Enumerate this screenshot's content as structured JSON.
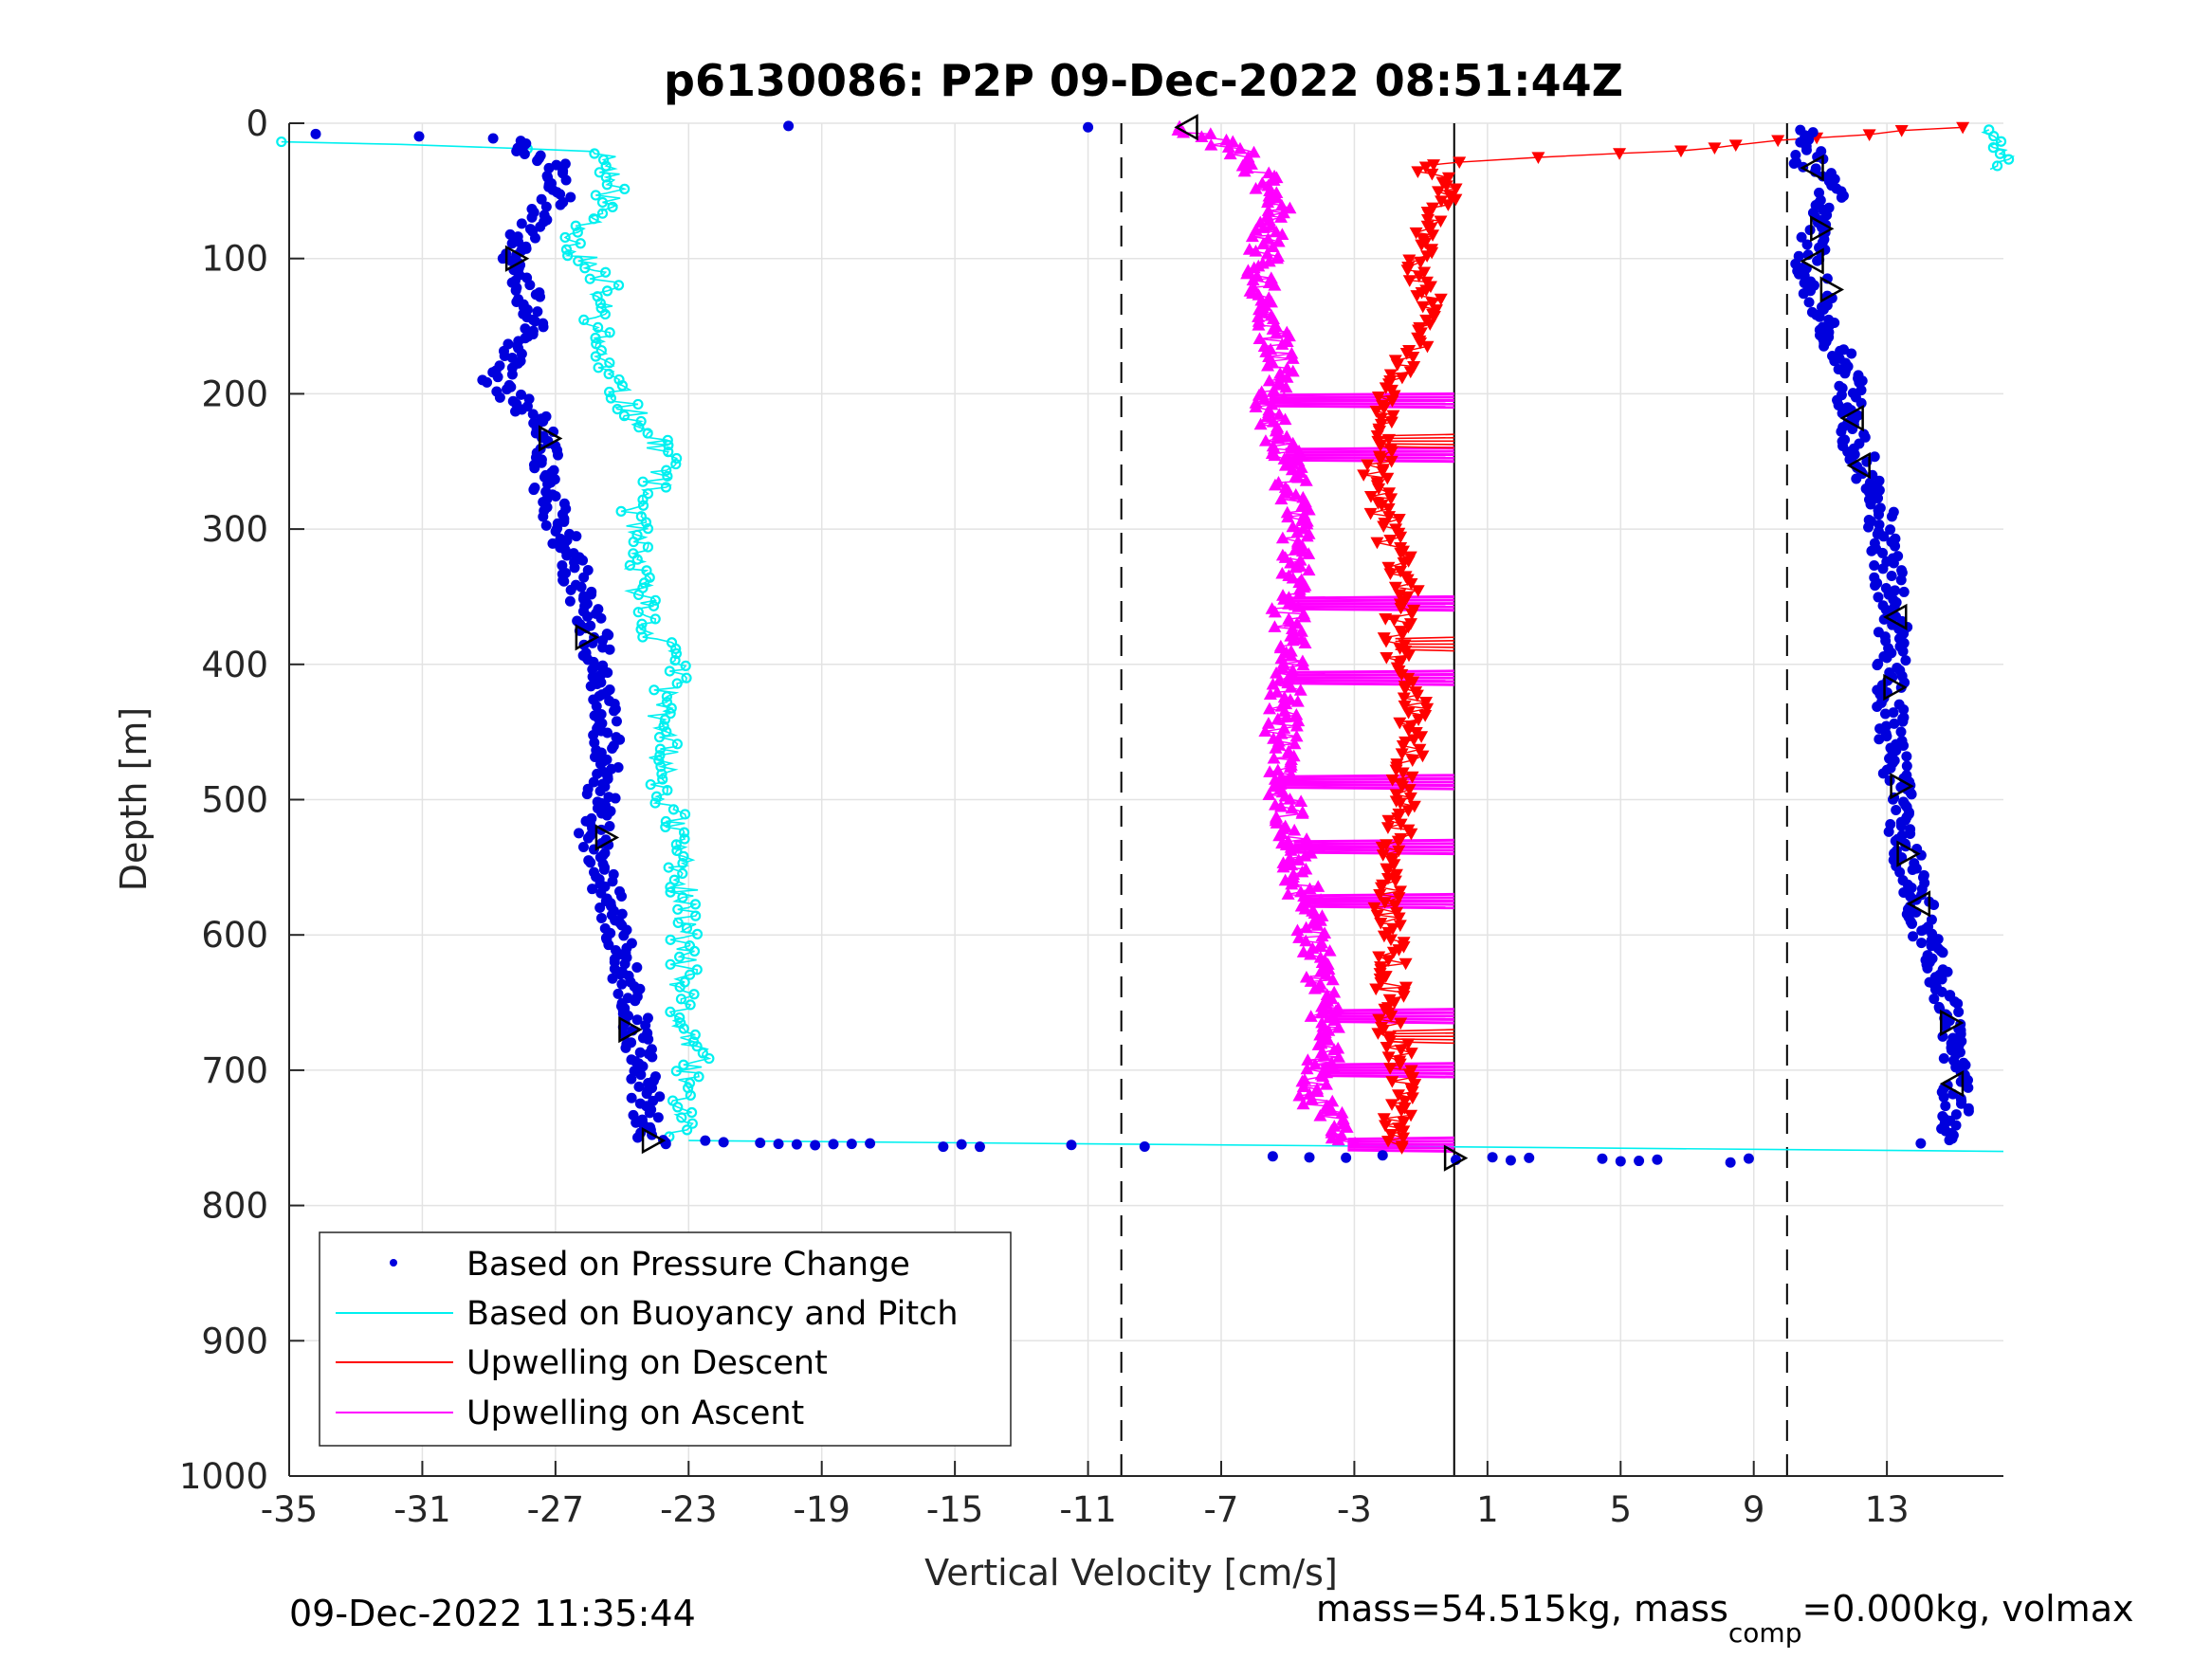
{
  "chart_data": {
    "type": "scatter",
    "title": "p6130086: P2P 09-Dec-2022 08:51:44Z",
    "xlabel": "Vertical Velocity [cm/s]",
    "ylabel": "Depth [m]",
    "xlim": [
      -35,
      16.5
    ],
    "ylim": [
      0,
      1000
    ],
    "y_reversed": true,
    "x_ticks": [
      -35,
      -31,
      -27,
      -23,
      -19,
      -15,
      -11,
      -7,
      -3,
      1,
      5,
      9,
      13
    ],
    "x_tick_labels": [
      "-35",
      "-31",
      "-27",
      "-23",
      "-19",
      "-15",
      "-11",
      "-7",
      "-3",
      "1",
      "5",
      "9",
      "13"
    ],
    "y_ticks": [
      0,
      100,
      200,
      300,
      400,
      500,
      600,
      700,
      800,
      900,
      1000
    ],
    "y_tick_labels": [
      "0",
      "100",
      "200",
      "300",
      "400",
      "500",
      "600",
      "700",
      "800",
      "900",
      "1000"
    ],
    "grid": true,
    "legend_position": "lower-left",
    "reference_lines": [
      {
        "x": -10,
        "style": "dashed"
      },
      {
        "x": 0,
        "style": "solid"
      },
      {
        "x": 10,
        "style": "dashed"
      }
    ],
    "series": [
      {
        "name": "Based on Pressure Change",
        "color": "#0000dd",
        "marker": "dot",
        "profiles": [
          {
            "depth": [
              8,
              12,
              30,
              50,
              80,
              100,
              150,
              190,
              230,
              260,
              300,
              350,
              380,
              420,
              470,
              530,
              580,
              620,
              670,
              710,
              740,
              755
            ],
            "x": [
              -34.0,
              -28.5,
              -27.0,
              -26.8,
              -28.0,
              -28.2,
              -27.6,
              -28.8,
              -27.2,
              -27.4,
              -26.8,
              -26.2,
              -25.8,
              -25.6,
              -25.4,
              -25.9,
              -25.3,
              -25.0,
              -24.6,
              -24.3,
              -24.2,
              -24.1
            ]
          },
          {
            "depth": [
              5,
              15,
              30,
              50,
              80,
              100,
              130,
              160,
              200,
              220,
              250,
              280,
              320,
              370,
              420,
              490,
              540,
              580,
              630,
              665,
              710,
              740,
              755
            ],
            "x": [
              10.6,
              10.8,
              10.6,
              11.4,
              10.9,
              10.6,
              11.0,
              11.4,
              12.0,
              11.8,
              12.3,
              12.8,
              13.0,
              13.2,
              13.1,
              13.3,
              13.6,
              14.0,
              14.5,
              14.8,
              15.0,
              15.1,
              14.4
            ]
          },
          {
            "depth": [
              753,
              755,
              757,
              758,
              760,
              763,
              765,
              767
            ],
            "x": [
              -22.5,
              -16.5,
              -11.5,
              -9.0,
              -7.0,
              -5.5,
              2.5,
              9.0
            ]
          }
        ],
        "surface_points": {
          "depth": [
            2,
            3
          ],
          "x": [
            -20.0,
            -11.0
          ]
        }
      },
      {
        "name": "Based on Buoyancy and Pitch",
        "color": "#00f0f0",
        "marker": "circle",
        "profiles": [
          {
            "depth": [
              14,
              20,
              40,
              60,
              90,
              120,
              150,
              190,
              230,
              250,
              290,
              340,
              380,
              395,
              430,
              490,
              545,
              600,
              660,
              690,
              720,
              750
            ],
            "x": [
              -35.0,
              -25.5,
              -25.3,
              -25.4,
              -26.5,
              -25.5,
              -25.8,
              -25.4,
              -24.2,
              -23.5,
              -24.7,
              -24.5,
              -24.0,
              -23.2,
              -23.8,
              -23.7,
              -23.2,
              -23.1,
              -23.3,
              -22.8,
              -23.2,
              -23.2
            ]
          },
          {
            "depth": [
              5,
              35
            ],
            "x": [
              16.3,
              16.4
            ]
          }
        ],
        "connector": {
          "depth": [
            752,
            760
          ],
          "x": [
            -23.0,
            16.5
          ]
        }
      },
      {
        "name": "Upwelling on Descent",
        "color": "#ff0000",
        "marker": "triangle-down",
        "profile": {
          "depth": [
            3,
            10,
            20,
            30,
            50,
            80,
            110,
            140,
            170,
            190,
            220,
            260,
            300,
            340,
            390,
            430,
            480,
            520,
            570,
            620,
            660,
            700,
            740,
            760
          ],
          "x": [
            15.5,
            11.0,
            7.0,
            -1.0,
            -0.2,
            -0.8,
            -1.3,
            -0.5,
            -1.1,
            -2.0,
            -2.0,
            -2.4,
            -2.0,
            -1.5,
            -1.8,
            -1.2,
            -1.4,
            -1.7,
            -2.0,
            -1.8,
            -2.0,
            -1.6,
            -1.7,
            -1.9
          ]
        },
        "spikes": [
          {
            "depth": 235,
            "x": 0.0
          },
          {
            "depth": 385,
            "x": 0.0
          },
          {
            "depth": 675,
            "x": 0.0
          }
        ]
      },
      {
        "name": "Upwelling on Ascent",
        "color": "#ff00ff",
        "marker": "triangle-up",
        "profile": {
          "depth": [
            3,
            20,
            40,
            60,
            90,
            120,
            150,
            180,
            210,
            250,
            290,
            330,
            360,
            400,
            450,
            500,
            550,
            600,
            640,
            680,
            720,
            755
          ],
          "x": [
            -8.0,
            -6.5,
            -5.8,
            -5.2,
            -5.8,
            -5.7,
            -5.5,
            -5.3,
            -5.6,
            -5.0,
            -4.8,
            -4.8,
            -5.0,
            -4.9,
            -5.2,
            -5.1,
            -4.7,
            -4.2,
            -4.0,
            -3.8,
            -4.2,
            -3.2
          ]
        },
        "spikes": [
          {
            "depth": 205,
            "x": 0.0
          },
          {
            "depth": 245,
            "x": 0.0
          },
          {
            "depth": 355,
            "x": 0.0
          },
          {
            "depth": 410,
            "x": 0.0
          },
          {
            "depth": 487,
            "x": 0.0
          },
          {
            "depth": 535,
            "x": 0.0
          },
          {
            "depth": 575,
            "x": 0.0
          },
          {
            "depth": 660,
            "x": 0.0
          },
          {
            "depth": 700,
            "x": 0.0
          },
          {
            "depth": 755,
            "x": 0.0
          }
        ]
      }
    ],
    "markers": [
      {
        "symbol": "triangle-left",
        "x": -8.0,
        "depth": 3
      },
      {
        "symbol": "triangle-left",
        "x": 10.8,
        "depth": 33
      },
      {
        "symbol": "triangle-right",
        "x": 11.0,
        "depth": 78
      },
      {
        "symbol": "triangle-right",
        "x": -28.2,
        "depth": 100
      },
      {
        "symbol": "triangle-left",
        "x": 10.8,
        "depth": 102
      },
      {
        "symbol": "triangle-right",
        "x": 11.3,
        "depth": 123
      },
      {
        "symbol": "triangle-left",
        "x": 12.0,
        "depth": 218
      },
      {
        "symbol": "triangle-right",
        "x": -27.2,
        "depth": 233
      },
      {
        "symbol": "triangle-left",
        "x": 12.2,
        "depth": 253
      },
      {
        "symbol": "triangle-left",
        "x": 13.3,
        "depth": 365
      },
      {
        "symbol": "triangle-right",
        "x": -26.1,
        "depth": 380
      },
      {
        "symbol": "triangle-right",
        "x": 13.2,
        "depth": 417
      },
      {
        "symbol": "triangle-right",
        "x": 13.4,
        "depth": 490
      },
      {
        "symbol": "triangle-right",
        "x": -25.5,
        "depth": 528
      },
      {
        "symbol": "triangle-right",
        "x": 13.6,
        "depth": 540
      },
      {
        "symbol": "triangle-left",
        "x": 14.0,
        "depth": 577
      },
      {
        "symbol": "triangle-right",
        "x": 14.9,
        "depth": 665
      },
      {
        "symbol": "triangle-right",
        "x": -24.8,
        "depth": 670
      },
      {
        "symbol": "triangle-left",
        "x": 15.0,
        "depth": 710
      },
      {
        "symbol": "triangle-right",
        "x": -24.1,
        "depth": 752
      },
      {
        "symbol": "triangle-right",
        "x": 0.0,
        "depth": 765
      }
    ]
  },
  "legend": {
    "items": [
      {
        "label": "Based on Pressure Change",
        "color": "#0000dd",
        "style": "dot"
      },
      {
        "label": "Based on Buoyancy and Pitch",
        "color": "#00f0f0",
        "style": "line"
      },
      {
        "label": "Upwelling on Descent",
        "color": "#ff0000",
        "style": "line"
      },
      {
        "label": "Upwelling on Ascent",
        "color": "#ff00ff",
        "style": "line"
      }
    ]
  },
  "footer": {
    "timestamp": "09-Dec-2022 11:35:44",
    "mass_text_1": "mass=54.515kg, mass",
    "mass_subscript": "comp",
    "mass_text_2": "=0.000kg, volmax"
  }
}
